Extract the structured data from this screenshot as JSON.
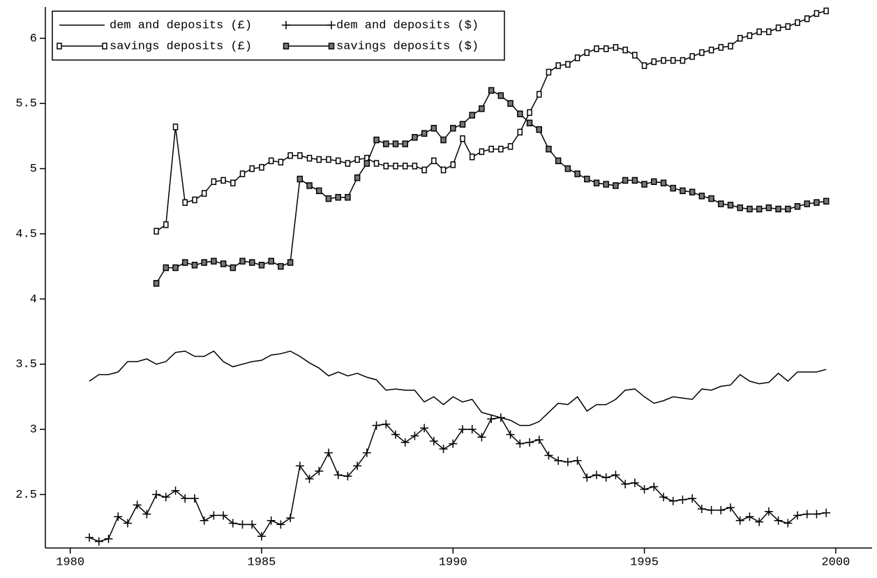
{
  "chart_data": {
    "type": "line",
    "x": [
      1980.5,
      1980.75,
      1981,
      1981.25,
      1981.5,
      1981.75,
      1982,
      1982.25,
      1982.5,
      1982.75,
      1983,
      1983.25,
      1983.5,
      1983.75,
      1984,
      1984.25,
      1984.5,
      1984.75,
      1985,
      1985.25,
      1985.5,
      1985.75,
      1986,
      1986.25,
      1986.5,
      1986.75,
      1987,
      1987.25,
      1987.5,
      1987.75,
      1988,
      1988.25,
      1988.5,
      1988.75,
      1989,
      1989.25,
      1989.5,
      1989.75,
      1990,
      1990.25,
      1990.5,
      1990.75,
      1991,
      1991.25,
      1991.5,
      1991.75,
      1992,
      1992.25,
      1992.5,
      1992.75,
      1993,
      1993.25,
      1993.5,
      1993.75,
      1994,
      1994.25,
      1994.5,
      1994.75,
      1995,
      1995.25,
      1995.5,
      1995.75,
      1996,
      1996.25,
      1996.5,
      1996.75,
      1997,
      1997.25,
      1997.5,
      1997.75,
      1998,
      1998.25,
      1998.5,
      1998.75,
      1999,
      1999.25,
      1999.5,
      1999.75
    ],
    "series": [
      {
        "name": "dem and deposits (£)",
        "color": "#000000",
        "marker": "none",
        "values": [
          3.37,
          3.42,
          3.42,
          3.44,
          3.52,
          3.52,
          3.54,
          3.5,
          3.52,
          3.59,
          3.6,
          3.56,
          3.56,
          3.6,
          3.52,
          3.48,
          3.5,
          3.52,
          3.53,
          3.57,
          3.58,
          3.6,
          3.56,
          3.51,
          3.47,
          3.41,
          3.44,
          3.41,
          3.43,
          3.4,
          3.38,
          3.3,
          3.31,
          3.3,
          3.3,
          3.21,
          3.25,
          3.19,
          3.25,
          3.21,
          3.23,
          3.13,
          3.11,
          3.09,
          3.07,
          3.03,
          3.03,
          3.06,
          3.13,
          3.2,
          3.19,
          3.25,
          3.14,
          3.19,
          3.19,
          3.23,
          3.3,
          3.31,
          3.25,
          3.2,
          3.22,
          3.25,
          3.24,
          3.23,
          3.31,
          3.3,
          3.33,
          3.34,
          3.42,
          3.37,
          3.35,
          3.36,
          3.43,
          3.37,
          3.44,
          3.44,
          3.44,
          3.46
        ]
      },
      {
        "name": "dem and deposits ($)",
        "color": "#000000",
        "marker": "plus",
        "values": [
          2.17,
          2.14,
          2.16,
          2.33,
          2.28,
          2.42,
          2.35,
          2.5,
          2.48,
          2.53,
          2.47,
          2.47,
          2.3,
          2.34,
          2.34,
          2.28,
          2.27,
          2.27,
          2.18,
          2.3,
          2.27,
          2.32,
          2.72,
          2.62,
          2.68,
          2.82,
          2.65,
          2.64,
          2.72,
          2.82,
          3.03,
          3.04,
          2.96,
          2.9,
          2.95,
          3.01,
          2.91,
          2.85,
          2.89,
          3.0,
          3.0,
          2.94,
          3.08,
          3.09,
          2.96,
          2.89,
          2.9,
          2.92,
          2.8,
          2.76,
          2.75,
          2.76,
          2.63,
          2.65,
          2.63,
          2.65,
          2.58,
          2.59,
          2.54,
          2.56,
          2.48,
          2.45,
          2.46,
          2.47,
          2.39,
          2.38,
          2.38,
          2.4,
          2.3,
          2.33,
          2.29,
          2.37,
          2.3,
          2.28,
          2.34,
          2.35,
          2.35,
          2.36
        ]
      },
      {
        "name": "savings deposits (£)",
        "color": "#000000",
        "marker": "square",
        "values": [
          null,
          null,
          null,
          null,
          null,
          null,
          null,
          4.52,
          4.57,
          5.32,
          4.74,
          4.76,
          4.81,
          4.9,
          4.91,
          4.89,
          4.96,
          5.0,
          5.01,
          5.06,
          5.05,
          5.1,
          5.1,
          5.08,
          5.07,
          5.07,
          5.06,
          5.04,
          5.07,
          5.08,
          5.04,
          5.02,
          5.02,
          5.02,
          5.02,
          4.99,
          5.06,
          4.99,
          5.03,
          5.23,
          5.09,
          5.13,
          5.15,
          5.15,
          5.17,
          5.28,
          5.43,
          5.57,
          5.74,
          5.79,
          5.8,
          5.85,
          5.89,
          5.92,
          5.92,
          5.93,
          5.91,
          5.87,
          5.79,
          5.82,
          5.83,
          5.83,
          5.83,
          5.86,
          5.89,
          5.91,
          5.93,
          5.94,
          6.0,
          6.02,
          6.05,
          6.05,
          6.08,
          6.09,
          6.12,
          6.15,
          6.19,
          6.21
        ]
      },
      {
        "name": "savings deposits ($)",
        "color": "#000000",
        "marker": "square-dot",
        "values": [
          null,
          null,
          null,
          null,
          null,
          null,
          null,
          4.12,
          4.24,
          4.24,
          4.28,
          4.26,
          4.28,
          4.29,
          4.27,
          4.24,
          4.29,
          4.28,
          4.26,
          4.29,
          4.25,
          4.28,
          4.92,
          4.87,
          4.83,
          4.77,
          4.78,
          4.78,
          4.93,
          5.04,
          5.22,
          5.19,
          5.19,
          5.19,
          5.24,
          5.27,
          5.31,
          5.22,
          5.31,
          5.34,
          5.41,
          5.46,
          5.6,
          5.56,
          5.5,
          5.42,
          5.35,
          5.3,
          5.15,
          5.06,
          5.0,
          4.96,
          4.92,
          4.89,
          4.88,
          4.87,
          4.91,
          4.91,
          4.88,
          4.9,
          4.89,
          4.85,
          4.83,
          4.82,
          4.79,
          4.77,
          4.73,
          4.72,
          4.7,
          4.69,
          4.69,
          4.7,
          4.69,
          4.69,
          4.71,
          4.73,
          4.74,
          4.75
        ]
      }
    ],
    "xlim": [
      1979.35,
      2000.95
    ],
    "ylim": [
      2.09,
      6.24
    ],
    "xticks": [
      1980,
      1985,
      1990,
      1995,
      2000
    ],
    "yticks": [
      2.5,
      3,
      3.5,
      4,
      4.5,
      5,
      5.5,
      6
    ],
    "legend": "upper left"
  }
}
